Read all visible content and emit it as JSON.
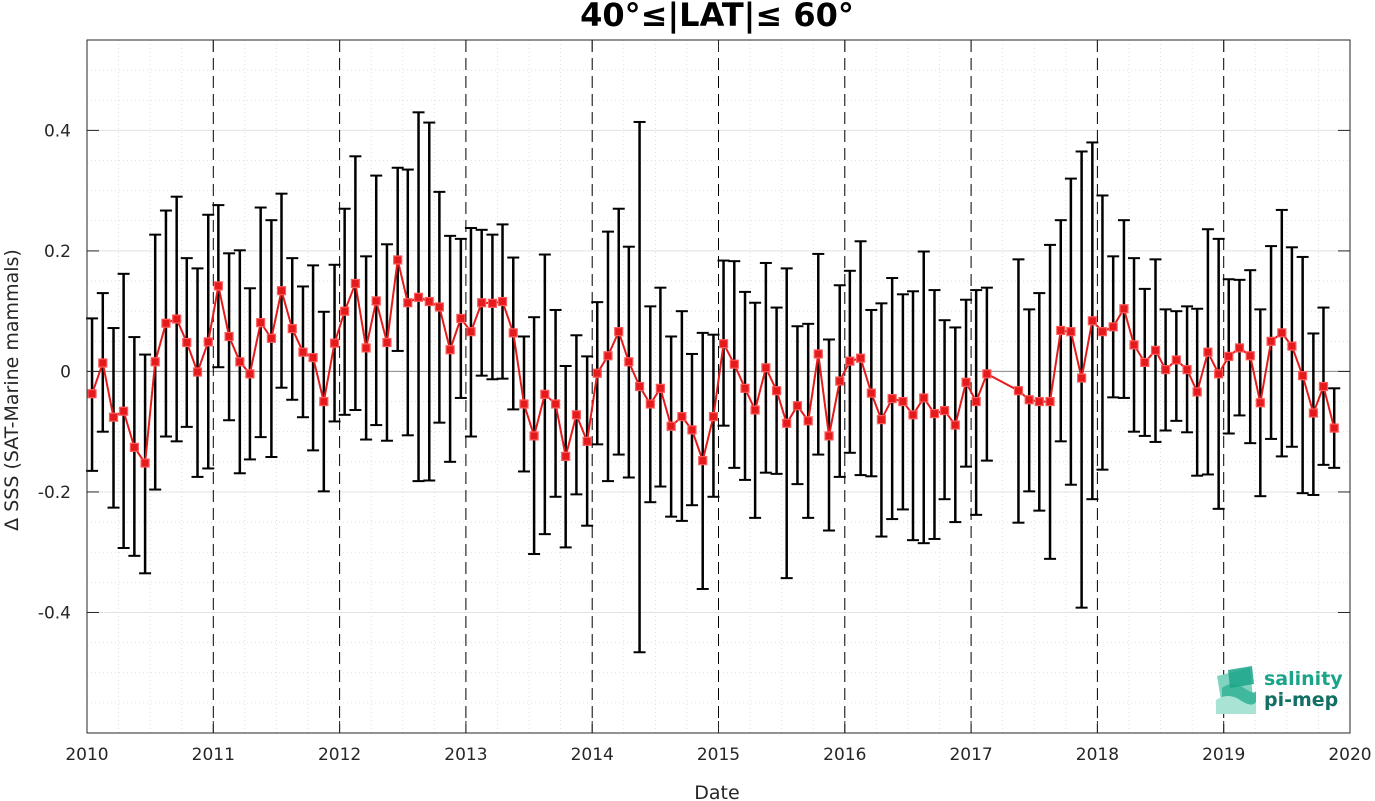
{
  "chart_data": {
    "type": "line",
    "title": "40°≤|LAT|≤ 60°",
    "xlabel": "Date",
    "ylabel": "Δ SSS (SAT-Marine mammals)",
    "xlim": [
      2010,
      2020
    ],
    "ylim": [
      -0.6,
      0.55
    ],
    "xticks": [
      2010,
      2011,
      2012,
      2013,
      2014,
      2015,
      2016,
      2017,
      2018,
      2019,
      2020
    ],
    "xtick_labels": [
      "2010",
      "2011",
      "2012",
      "2013",
      "2014",
      "2015",
      "2016",
      "2017",
      "2018",
      "2019",
      "2020"
    ],
    "yticks": [
      -0.4,
      -0.2,
      0,
      0.2,
      0.4
    ],
    "ytick_labels": [
      "-0.4",
      "-0.2",
      "0",
      "0.2",
      "0.4"
    ],
    "grid": true,
    "minor_grid": true,
    "zero_line": true,
    "year_separators": true,
    "colors": {
      "series": "#e41a1c",
      "errorbar": "#000000",
      "grid": "#d9d9d9",
      "axis": "#262626"
    },
    "series": [
      {
        "marker": "square",
        "error_bars": true,
        "points": [
          {
            "x": 2010.04,
            "y": -0.037,
            "lo": -0.165,
            "hi": 0.088
          },
          {
            "x": 2010.125,
            "y": 0.014,
            "lo": -0.1,
            "hi": 0.13
          },
          {
            "x": 2010.21,
            "y": -0.076,
            "lo": -0.226,
            "hi": 0.072
          },
          {
            "x": 2010.29,
            "y": -0.066,
            "lo": -0.293,
            "hi": 0.162
          },
          {
            "x": 2010.375,
            "y": -0.126,
            "lo": -0.306,
            "hi": 0.057
          },
          {
            "x": 2010.46,
            "y": -0.152,
            "lo": -0.335,
            "hi": 0.028
          },
          {
            "x": 2010.54,
            "y": 0.016,
            "lo": -0.196,
            "hi": 0.227
          },
          {
            "x": 2010.625,
            "y": 0.08,
            "lo": -0.108,
            "hi": 0.267
          },
          {
            "x": 2010.71,
            "y": 0.087,
            "lo": -0.116,
            "hi": 0.29
          },
          {
            "x": 2010.79,
            "y": 0.048,
            "lo": -0.092,
            "hi": 0.188
          },
          {
            "x": 2010.875,
            "y": -0.001,
            "lo": -0.175,
            "hi": 0.171
          },
          {
            "x": 2010.96,
            "y": 0.049,
            "lo": -0.161,
            "hi": 0.26
          },
          {
            "x": 2011.04,
            "y": 0.142,
            "lo": 0.007,
            "hi": 0.276
          },
          {
            "x": 2011.125,
            "y": 0.058,
            "lo": -0.081,
            "hi": 0.196
          },
          {
            "x": 2011.21,
            "y": 0.016,
            "lo": -0.169,
            "hi": 0.201
          },
          {
            "x": 2011.29,
            "y": -0.004,
            "lo": -0.146,
            "hi": 0.138
          },
          {
            "x": 2011.375,
            "y": 0.081,
            "lo": -0.109,
            "hi": 0.272
          },
          {
            "x": 2011.46,
            "y": 0.055,
            "lo": -0.142,
            "hi": 0.251
          },
          {
            "x": 2011.54,
            "y": 0.134,
            "lo": -0.027,
            "hi": 0.295
          },
          {
            "x": 2011.625,
            "y": 0.071,
            "lo": -0.047,
            "hi": 0.188
          },
          {
            "x": 2011.71,
            "y": 0.032,
            "lo": -0.076,
            "hi": 0.141
          },
          {
            "x": 2011.79,
            "y": 0.023,
            "lo": -0.131,
            "hi": 0.176
          },
          {
            "x": 2011.875,
            "y": -0.05,
            "lo": -0.199,
            "hi": 0.099
          },
          {
            "x": 2011.96,
            "y": 0.047,
            "lo": -0.083,
            "hi": 0.177
          },
          {
            "x": 2012.04,
            "y": 0.1,
            "lo": -0.072,
            "hi": 0.27
          },
          {
            "x": 2012.125,
            "y": 0.146,
            "lo": -0.064,
            "hi": 0.357
          },
          {
            "x": 2012.21,
            "y": 0.039,
            "lo": -0.113,
            "hi": 0.191
          },
          {
            "x": 2012.29,
            "y": 0.117,
            "lo": -0.089,
            "hi": 0.325
          },
          {
            "x": 2012.375,
            "y": 0.048,
            "lo": -0.115,
            "hi": 0.211
          },
          {
            "x": 2012.46,
            "y": 0.185,
            "lo": 0.034,
            "hi": 0.338
          },
          {
            "x": 2012.54,
            "y": 0.114,
            "lo": -0.106,
            "hi": 0.335
          },
          {
            "x": 2012.625,
            "y": 0.123,
            "lo": -0.182,
            "hi": 0.43
          },
          {
            "x": 2012.71,
            "y": 0.116,
            "lo": -0.181,
            "hi": 0.413
          },
          {
            "x": 2012.79,
            "y": 0.107,
            "lo": -0.085,
            "hi": 0.298
          },
          {
            "x": 2012.875,
            "y": 0.036,
            "lo": -0.15,
            "hi": 0.225
          },
          {
            "x": 2012.96,
            "y": 0.088,
            "lo": -0.044,
            "hi": 0.22
          },
          {
            "x": 2013.04,
            "y": 0.066,
            "lo": -0.108,
            "hi": 0.238
          },
          {
            "x": 2013.125,
            "y": 0.114,
            "lo": -0.007,
            "hi": 0.235
          },
          {
            "x": 2013.21,
            "y": 0.113,
            "lo": -0.013,
            "hi": 0.227
          },
          {
            "x": 2013.29,
            "y": 0.116,
            "lo": -0.012,
            "hi": 0.244
          },
          {
            "x": 2013.375,
            "y": 0.064,
            "lo": -0.063,
            "hi": 0.189
          },
          {
            "x": 2013.46,
            "y": -0.054,
            "lo": -0.166,
            "hi": 0.058
          },
          {
            "x": 2013.54,
            "y": -0.107,
            "lo": -0.303,
            "hi": 0.09
          },
          {
            "x": 2013.625,
            "y": -0.038,
            "lo": -0.27,
            "hi": 0.194
          },
          {
            "x": 2013.71,
            "y": -0.054,
            "lo": -0.208,
            "hi": 0.102
          },
          {
            "x": 2013.79,
            "y": -0.141,
            "lo": -0.292,
            "hi": 0.009
          },
          {
            "x": 2013.875,
            "y": -0.072,
            "lo": -0.204,
            "hi": 0.06
          },
          {
            "x": 2013.96,
            "y": -0.116,
            "lo": -0.256,
            "hi": 0.025
          },
          {
            "x": 2014.04,
            "y": -0.003,
            "lo": -0.121,
            "hi": 0.115
          },
          {
            "x": 2014.125,
            "y": 0.026,
            "lo": -0.182,
            "hi": 0.232
          },
          {
            "x": 2014.21,
            "y": 0.066,
            "lo": -0.138,
            "hi": 0.27
          },
          {
            "x": 2014.29,
            "y": 0.016,
            "lo": -0.176,
            "hi": 0.207
          },
          {
            "x": 2014.375,
            "y": -0.025,
            "lo": -0.466,
            "hi": 0.414
          },
          {
            "x": 2014.46,
            "y": -0.054,
            "lo": -0.217,
            "hi": 0.108
          },
          {
            "x": 2014.54,
            "y": -0.028,
            "lo": -0.191,
            "hi": 0.139
          },
          {
            "x": 2014.625,
            "y": -0.091,
            "lo": -0.241,
            "hi": 0.058
          },
          {
            "x": 2014.71,
            "y": -0.075,
            "lo": -0.248,
            "hi": 0.1
          },
          {
            "x": 2014.79,
            "y": -0.097,
            "lo": -0.222,
            "hi": 0.029
          },
          {
            "x": 2014.875,
            "y": -0.148,
            "lo": -0.361,
            "hi": 0.064
          },
          {
            "x": 2014.96,
            "y": -0.075,
            "lo": -0.208,
            "hi": 0.061
          },
          {
            "x": 2015.04,
            "y": 0.046,
            "lo": -0.09,
            "hi": 0.184
          },
          {
            "x": 2015.125,
            "y": 0.012,
            "lo": -0.16,
            "hi": 0.183
          },
          {
            "x": 2015.21,
            "y": -0.028,
            "lo": -0.18,
            "hi": 0.132
          },
          {
            "x": 2015.29,
            "y": -0.064,
            "lo": -0.243,
            "hi": 0.114
          },
          {
            "x": 2015.375,
            "y": 0.006,
            "lo": -0.168,
            "hi": 0.18
          },
          {
            "x": 2015.46,
            "y": -0.032,
            "lo": -0.17,
            "hi": 0.106
          },
          {
            "x": 2015.54,
            "y": -0.086,
            "lo": -0.343,
            "hi": 0.171
          },
          {
            "x": 2015.625,
            "y": -0.057,
            "lo": -0.187,
            "hi": 0.075
          },
          {
            "x": 2015.71,
            "y": -0.082,
            "lo": -0.243,
            "hi": 0.079
          },
          {
            "x": 2015.79,
            "y": 0.029,
            "lo": -0.138,
            "hi": 0.195
          },
          {
            "x": 2015.875,
            "y": -0.107,
            "lo": -0.264,
            "hi": 0.053
          },
          {
            "x": 2015.96,
            "y": -0.016,
            "lo": -0.175,
            "hi": 0.143
          },
          {
            "x": 2016.04,
            "y": 0.017,
            "lo": -0.135,
            "hi": 0.167
          },
          {
            "x": 2016.125,
            "y": 0.022,
            "lo": -0.172,
            "hi": 0.216
          },
          {
            "x": 2016.21,
            "y": -0.036,
            "lo": -0.174,
            "hi": 0.102
          },
          {
            "x": 2016.29,
            "y": -0.08,
            "lo": -0.274,
            "hi": 0.113
          },
          {
            "x": 2016.375,
            "y": -0.045,
            "lo": -0.245,
            "hi": 0.155
          },
          {
            "x": 2016.46,
            "y": -0.05,
            "lo": -0.229,
            "hi": 0.128
          },
          {
            "x": 2016.54,
            "y": -0.072,
            "lo": -0.28,
            "hi": 0.133
          },
          {
            "x": 2016.625,
            "y": -0.044,
            "lo": -0.285,
            "hi": 0.199
          },
          {
            "x": 2016.71,
            "y": -0.07,
            "lo": -0.278,
            "hi": 0.135
          },
          {
            "x": 2016.79,
            "y": -0.065,
            "lo": -0.212,
            "hi": 0.085
          },
          {
            "x": 2016.875,
            "y": -0.089,
            "lo": -0.25,
            "hi": 0.073
          },
          {
            "x": 2016.96,
            "y": -0.018,
            "lo": -0.158,
            "hi": 0.119
          },
          {
            "x": 2017.04,
            "y": -0.05,
            "lo": -0.238,
            "hi": 0.135
          },
          {
            "x": 2017.125,
            "y": -0.004,
            "lo": -0.148,
            "hi": 0.139
          },
          {
            "x": 2017.375,
            "y": -0.032,
            "lo": -0.251,
            "hi": 0.186
          },
          {
            "x": 2017.46,
            "y": -0.047,
            "lo": -0.199,
            "hi": 0.103
          },
          {
            "x": 2017.54,
            "y": -0.05,
            "lo": -0.231,
            "hi": 0.13
          },
          {
            "x": 2017.625,
            "y": -0.05,
            "lo": -0.311,
            "hi": 0.21
          },
          {
            "x": 2017.71,
            "y": 0.068,
            "lo": -0.116,
            "hi": 0.251
          },
          {
            "x": 2017.79,
            "y": 0.066,
            "lo": -0.188,
            "hi": 0.32
          },
          {
            "x": 2017.875,
            "y": -0.011,
            "lo": -0.392,
            "hi": 0.365
          },
          {
            "x": 2017.96,
            "y": 0.084,
            "lo": -0.212,
            "hi": 0.38
          },
          {
            "x": 2018.04,
            "y": 0.066,
            "lo": -0.163,
            "hi": 0.292
          },
          {
            "x": 2018.125,
            "y": 0.074,
            "lo": -0.043,
            "hi": 0.191
          },
          {
            "x": 2018.21,
            "y": 0.104,
            "lo": -0.044,
            "hi": 0.251
          },
          {
            "x": 2018.29,
            "y": 0.044,
            "lo": -0.1,
            "hi": 0.188
          },
          {
            "x": 2018.375,
            "y": 0.015,
            "lo": -0.107,
            "hi": 0.137
          },
          {
            "x": 2018.46,
            "y": 0.035,
            "lo": -0.117,
            "hi": 0.186
          },
          {
            "x": 2018.54,
            "y": 0.003,
            "lo": -0.098,
            "hi": 0.103
          },
          {
            "x": 2018.625,
            "y": 0.019,
            "lo": -0.082,
            "hi": 0.1
          },
          {
            "x": 2018.71,
            "y": 0.003,
            "lo": -0.101,
            "hi": 0.108
          },
          {
            "x": 2018.79,
            "y": -0.034,
            "lo": -0.173,
            "hi": 0.104
          },
          {
            "x": 2018.875,
            "y": 0.032,
            "lo": -0.171,
            "hi": 0.236
          },
          {
            "x": 2018.96,
            "y": -0.004,
            "lo": -0.228,
            "hi": 0.22
          },
          {
            "x": 2019.04,
            "y": 0.025,
            "lo": -0.103,
            "hi": 0.153
          },
          {
            "x": 2019.125,
            "y": 0.039,
            "lo": -0.073,
            "hi": 0.152
          },
          {
            "x": 2019.21,
            "y": 0.026,
            "lo": -0.119,
            "hi": 0.168
          },
          {
            "x": 2019.29,
            "y": -0.052,
            "lo": -0.207,
            "hi": 0.103
          },
          {
            "x": 2019.375,
            "y": 0.05,
            "lo": -0.112,
            "hi": 0.208
          },
          {
            "x": 2019.46,
            "y": 0.064,
            "lo": -0.141,
            "hi": 0.268
          },
          {
            "x": 2019.54,
            "y": 0.042,
            "lo": -0.125,
            "hi": 0.206
          },
          {
            "x": 2019.625,
            "y": -0.007,
            "lo": -0.202,
            "hi": 0.19
          },
          {
            "x": 2019.71,
            "y": -0.069,
            "lo": -0.205,
            "hi": 0.063
          },
          {
            "x": 2019.79,
            "y": -0.025,
            "lo": -0.155,
            "hi": 0.106
          },
          {
            "x": 2019.875,
            "y": -0.094,
            "lo": -0.16,
            "hi": -0.028
          }
        ]
      }
    ]
  },
  "logo": {
    "line1": "salinity",
    "line2": "pi-mep",
    "icon": "salinity-waves-icon",
    "color": "#1aa58a"
  }
}
